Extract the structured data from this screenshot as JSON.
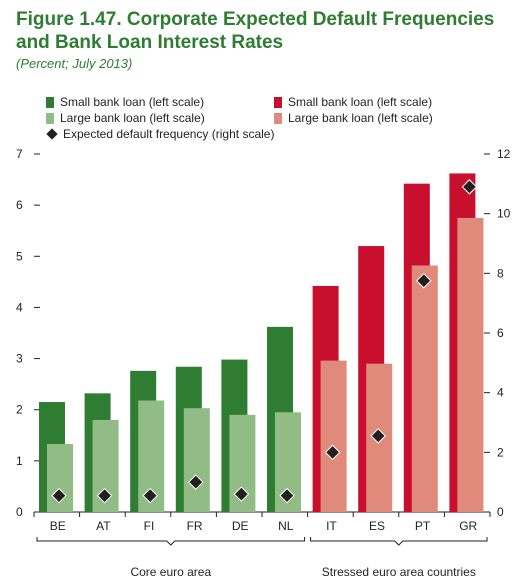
{
  "title": "Figure 1.47. Corporate Expected Default Frequencies and Bank Loan Interest Rates",
  "subtitle": "(Percent; July 2013)",
  "legend": {
    "left": [
      {
        "label": "Small bank loan (left scale)",
        "color": "#2e7d32",
        "type": "bar"
      },
      {
        "label": "Large bank loan (left scale)",
        "color": "#92bc86",
        "type": "bar"
      },
      {
        "label": "Expected default frequency (right scale)",
        "color": "#231f20",
        "type": "diamond"
      }
    ],
    "right": [
      {
        "label": "Small bank loan (left scale)",
        "color": "#c8102e",
        "type": "bar"
      },
      {
        "label": "Large bank loan (left scale)",
        "color": "#e08a7c",
        "type": "bar"
      }
    ]
  },
  "chart_data": {
    "type": "bar",
    "categories": [
      "BE",
      "AT",
      "FI",
      "FR",
      "DE",
      "NL",
      "IT",
      "ES",
      "PT",
      "GR"
    ],
    "groups": [
      {
        "label": "Core euro area",
        "categories": [
          "BE",
          "AT",
          "FI",
          "FR",
          "DE",
          "NL"
        ],
        "colors": {
          "small": "#2e7d32",
          "large": "#92bc86"
        }
      },
      {
        "label": "Stressed euro area countries",
        "categories": [
          "IT",
          "ES",
          "PT",
          "GR"
        ],
        "colors": {
          "small": "#c8102e",
          "large": "#e08a7c"
        }
      }
    ],
    "series": [
      {
        "name": "Small bank loan (left scale)",
        "axis": "left",
        "values": [
          2.15,
          2.32,
          2.76,
          2.84,
          2.98,
          3.62,
          4.42,
          5.2,
          6.42,
          6.62
        ]
      },
      {
        "name": "Large bank loan (left scale)",
        "axis": "left",
        "values": [
          1.33,
          1.8,
          2.18,
          2.03,
          1.9,
          1.95,
          2.96,
          2.9,
          4.82,
          5.75
        ]
      },
      {
        "name": "Expected default frequency (right scale)",
        "axis": "right",
        "type": "scatter",
        "values": [
          0.55,
          0.55,
          0.55,
          1.0,
          0.6,
          0.55,
          2.0,
          2.55,
          7.75,
          10.9
        ]
      }
    ],
    "left_axis": {
      "min": 0,
      "max": 7,
      "ticks": [
        0,
        1,
        2,
        3,
        4,
        5,
        6,
        7
      ]
    },
    "right_axis": {
      "min": 0,
      "max": 12,
      "ticks": [
        0,
        2,
        4,
        6,
        8,
        10,
        12
      ]
    }
  }
}
